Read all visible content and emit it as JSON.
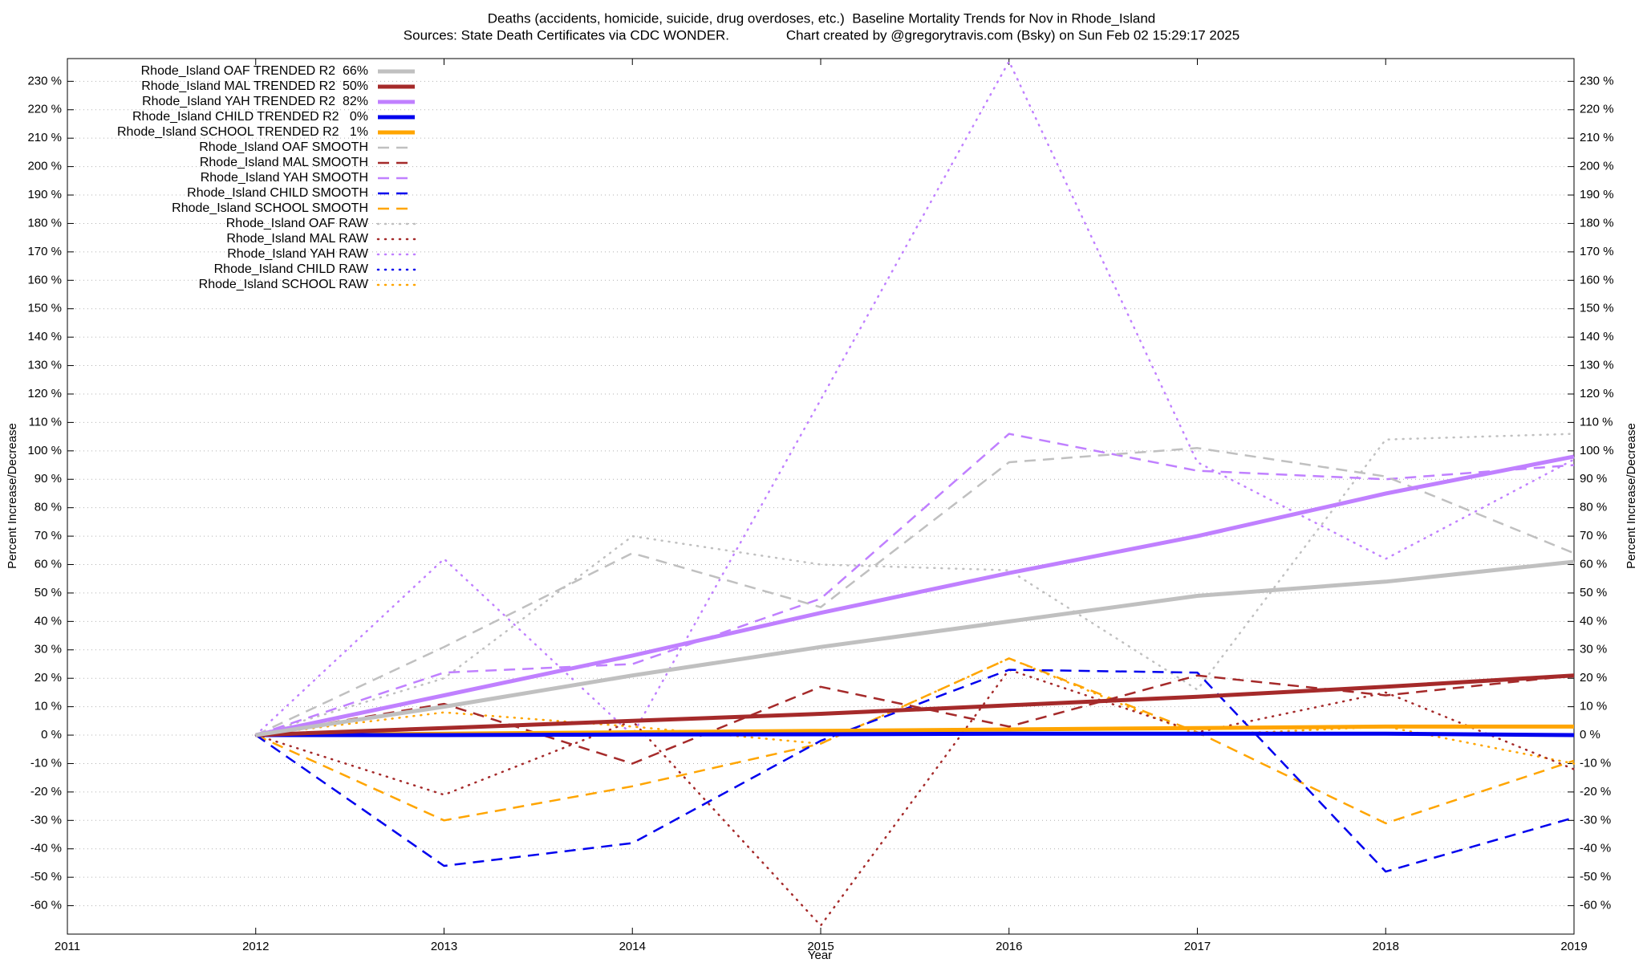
{
  "chart_data": {
    "type": "line",
    "title": "Deaths (accidents, homicide, suicide, drug overdoses, etc.)  Baseline Mortality Trends for Nov in Rhode_Island",
    "subtitle": "Sources: State Death Certificates via CDC WONDER.               Chart created by @gregorytravis.com (Bsky) on Sun Feb 02 15:29:17 2025",
    "x_label": "Year",
    "y_label": "Percent Increase/Decrease",
    "y2_label": "Percent Increase/Decrease",
    "x": [
      2012,
      2013,
      2014,
      2015,
      2016,
      2017,
      2018,
      2019
    ],
    "xlim": [
      2011,
      2019
    ],
    "xticks": [
      2011,
      2012,
      2013,
      2014,
      2015,
      2016,
      2017,
      2018,
      2019
    ],
    "ylim": [
      -70,
      238
    ],
    "yticks": [
      {
        "value": -60,
        "label": "-60 %"
      },
      {
        "value": -50,
        "label": "-50 %"
      },
      {
        "value": -40,
        "label": "-40 %"
      },
      {
        "value": -30,
        "label": "-30 %"
      },
      {
        "value": -20,
        "label": "-20 %"
      },
      {
        "value": -10,
        "label": "-10 %"
      },
      {
        "value": 0,
        "label": "0 %"
      },
      {
        "value": 10,
        "label": "10 %"
      },
      {
        "value": 20,
        "label": "20 %"
      },
      {
        "value": 30,
        "label": "30 %"
      },
      {
        "value": 40,
        "label": "40 %"
      },
      {
        "value": 50,
        "label": "50 %"
      },
      {
        "value": 60,
        "label": "60 %"
      },
      {
        "value": 70,
        "label": "70 %"
      },
      {
        "value": 80,
        "label": "80 %"
      },
      {
        "value": 90,
        "label": "90 %"
      },
      {
        "value": 100,
        "label": "100 %"
      },
      {
        "value": 110,
        "label": "110 %"
      },
      {
        "value": 120,
        "label": "120 %"
      },
      {
        "value": 130,
        "label": "130 %"
      },
      {
        "value": 140,
        "label": "140 %"
      },
      {
        "value": 150,
        "label": "150 %"
      },
      {
        "value": 160,
        "label": "160 %"
      },
      {
        "value": 170,
        "label": "170 %"
      },
      {
        "value": 180,
        "label": "180 %"
      },
      {
        "value": 190,
        "label": "190 %"
      },
      {
        "value": 200,
        "label": "200 %"
      },
      {
        "value": 210,
        "label": "210 %"
      },
      {
        "value": 220,
        "label": "220 %"
      },
      {
        "value": 230,
        "label": "230 %"
      }
    ],
    "y2lim": [
      -70,
      238
    ],
    "y2ticks": [
      {
        "value": -60,
        "label": "-60 %"
      },
      {
        "value": -50,
        "label": "-50 %"
      },
      {
        "value": -40,
        "label": "-40 %"
      },
      {
        "value": -30,
        "label": "-30 %"
      },
      {
        "value": -20,
        "label": "-20 %"
      },
      {
        "value": -10,
        "label": "-10 %"
      },
      {
        "value": 0,
        "label": "0 %"
      },
      {
        "value": 10,
        "label": "10 %"
      },
      {
        "value": 20,
        "label": "20 %"
      },
      {
        "value": 30,
        "label": "30 %"
      },
      {
        "value": 40,
        "label": "40 %"
      },
      {
        "value": 50,
        "label": "50 %"
      },
      {
        "value": 60,
        "label": "60 %"
      },
      {
        "value": 70,
        "label": "70 %"
      },
      {
        "value": 80,
        "label": "80 %"
      },
      {
        "value": 90,
        "label": "90 %"
      },
      {
        "value": 100,
        "label": "100 %"
      },
      {
        "value": 110,
        "label": "110 %"
      },
      {
        "value": 120,
        "label": "120 %"
      },
      {
        "value": 130,
        "label": "130 %"
      },
      {
        "value": 140,
        "label": "140 %"
      },
      {
        "value": 150,
        "label": "150 %"
      },
      {
        "value": 160,
        "label": "160 %"
      },
      {
        "value": 170,
        "label": "170 %"
      },
      {
        "value": 180,
        "label": "180 %"
      },
      {
        "value": 190,
        "label": "190 %"
      },
      {
        "value": 200,
        "label": "200 %"
      },
      {
        "value": 210,
        "label": "210 %"
      },
      {
        "value": 220,
        "label": "220 %"
      },
      {
        "value": 230,
        "label": "230 %"
      }
    ],
    "grid": true,
    "legend": "top-left",
    "series": [
      {
        "name": "Rhode_Island OAF TRENDED R2  66%",
        "color": "#c0c0c0",
        "style": "solid",
        "values": [
          0,
          10,
          21,
          31,
          40,
          49,
          54,
          61
        ]
      },
      {
        "name": "Rhode_Island MAL TRENDED R2  50%",
        "color": "#a52a2a",
        "style": "solid",
        "values": [
          0,
          2.5,
          5,
          7.5,
          10.5,
          13.5,
          17,
          21
        ]
      },
      {
        "name": "Rhode_Island YAH TRENDED R2  82%",
        "color": "#c080ff",
        "style": "solid",
        "values": [
          0,
          14,
          28,
          43,
          57,
          70,
          85,
          98
        ]
      },
      {
        "name": "Rhode_Island CHILD TRENDED R2   0%",
        "color": "#0000ee",
        "style": "solid",
        "values": [
          0,
          0,
          0.2,
          0.3,
          0.5,
          0.5,
          0.5,
          0
        ]
      },
      {
        "name": "Rhode_Island SCHOOL TRENDED R2   1%",
        "color": "#ffa500",
        "style": "solid",
        "values": [
          0,
          0.5,
          1,
          1.5,
          2,
          2.5,
          3,
          3
        ]
      },
      {
        "name": "Rhode_Island OAF SMOOTH",
        "color": "#c0c0c0",
        "style": "dashed",
        "values": [
          0,
          31,
          64,
          45,
          96,
          101,
          91,
          64
        ]
      },
      {
        "name": "Rhode_Island MAL SMOOTH",
        "color": "#a52a2a",
        "style": "dashed",
        "values": [
          0,
          11,
          -10,
          17,
          3,
          21,
          14,
          21
        ]
      },
      {
        "name": "Rhode_Island YAH SMOOTH",
        "color": "#c080ff",
        "style": "dashed",
        "values": [
          0,
          22,
          25,
          48,
          106,
          93,
          90,
          95
        ]
      },
      {
        "name": "Rhode_Island CHILD SMOOTH",
        "color": "#0000ee",
        "style": "dashed",
        "values": [
          0,
          -46,
          -38,
          -2,
          23,
          22,
          -48,
          -29
        ]
      },
      {
        "name": "Rhode_Island SCHOOL SMOOTH",
        "color": "#ffa500",
        "style": "dashed",
        "values": [
          0,
          -30,
          -18,
          -3,
          27,
          1,
          -31,
          -9
        ]
      },
      {
        "name": "Rhode_Island OAF RAW",
        "color": "#c0c0c0",
        "style": "dotted",
        "values": [
          0,
          20,
          70,
          60,
          58,
          16,
          104,
          106
        ]
      },
      {
        "name": "Rhode_Island MAL RAW",
        "color": "#a52a2a",
        "style": "dotted",
        "values": [
          0,
          -21,
          5,
          -67,
          23,
          1,
          15,
          -12
        ]
      },
      {
        "name": "Rhode_Island YAH RAW",
        "color": "#c080ff",
        "style": "dotted",
        "values": [
          0,
          62,
          0,
          118,
          237,
          96,
          62,
          97
        ]
      },
      {
        "name": "Rhode_Island CHILD RAW",
        "color": "#0000ee",
        "style": "dotted",
        "values": [
          0,
          0,
          0,
          0,
          0.5,
          0.5,
          0.5,
          0
        ]
      },
      {
        "name": "Rhode_Island SCHOOL RAW",
        "color": "#ffa500",
        "style": "dotted",
        "values": [
          0,
          8,
          3,
          -3,
          27,
          0,
          3,
          -10
        ]
      }
    ]
  }
}
